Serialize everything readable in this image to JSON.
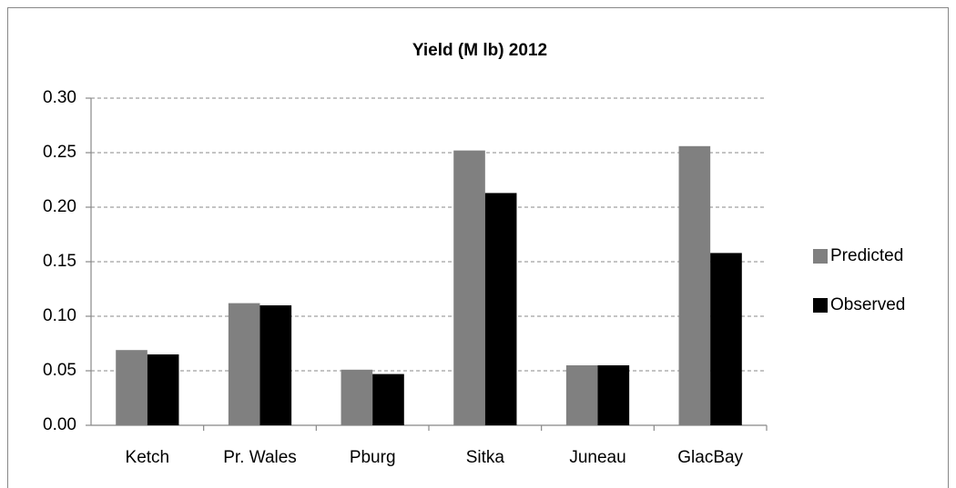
{
  "chart_data": {
    "type": "bar",
    "title": "Yield  (M lb) 2012",
    "categories": [
      "Ketch",
      "Pr. Wales",
      "Pburg",
      "Sitka",
      "Juneau",
      "GlacBay"
    ],
    "series": [
      {
        "name": "Predicted",
        "color": "#808080",
        "values": [
          0.069,
          0.112,
          0.051,
          0.252,
          0.055,
          0.256
        ]
      },
      {
        "name": "Observed",
        "color": "#000000",
        "values": [
          0.065,
          0.11,
          0.047,
          0.213,
          0.055,
          0.158
        ]
      }
    ],
    "ylim": [
      0,
      0.3
    ],
    "yticks": [
      {
        "value": 0,
        "label": "0.00"
      },
      {
        "value": 0.05,
        "label": "0.05"
      },
      {
        "value": 0.1,
        "label": "0.10"
      },
      {
        "value": 0.15,
        "label": "0.15"
      },
      {
        "value": 0.2,
        "label": "0.20"
      },
      {
        "value": 0.25,
        "label": "0.25"
      },
      {
        "value": 0.3,
        "label": "0.30"
      }
    ],
    "grid": true,
    "legend": "right"
  }
}
